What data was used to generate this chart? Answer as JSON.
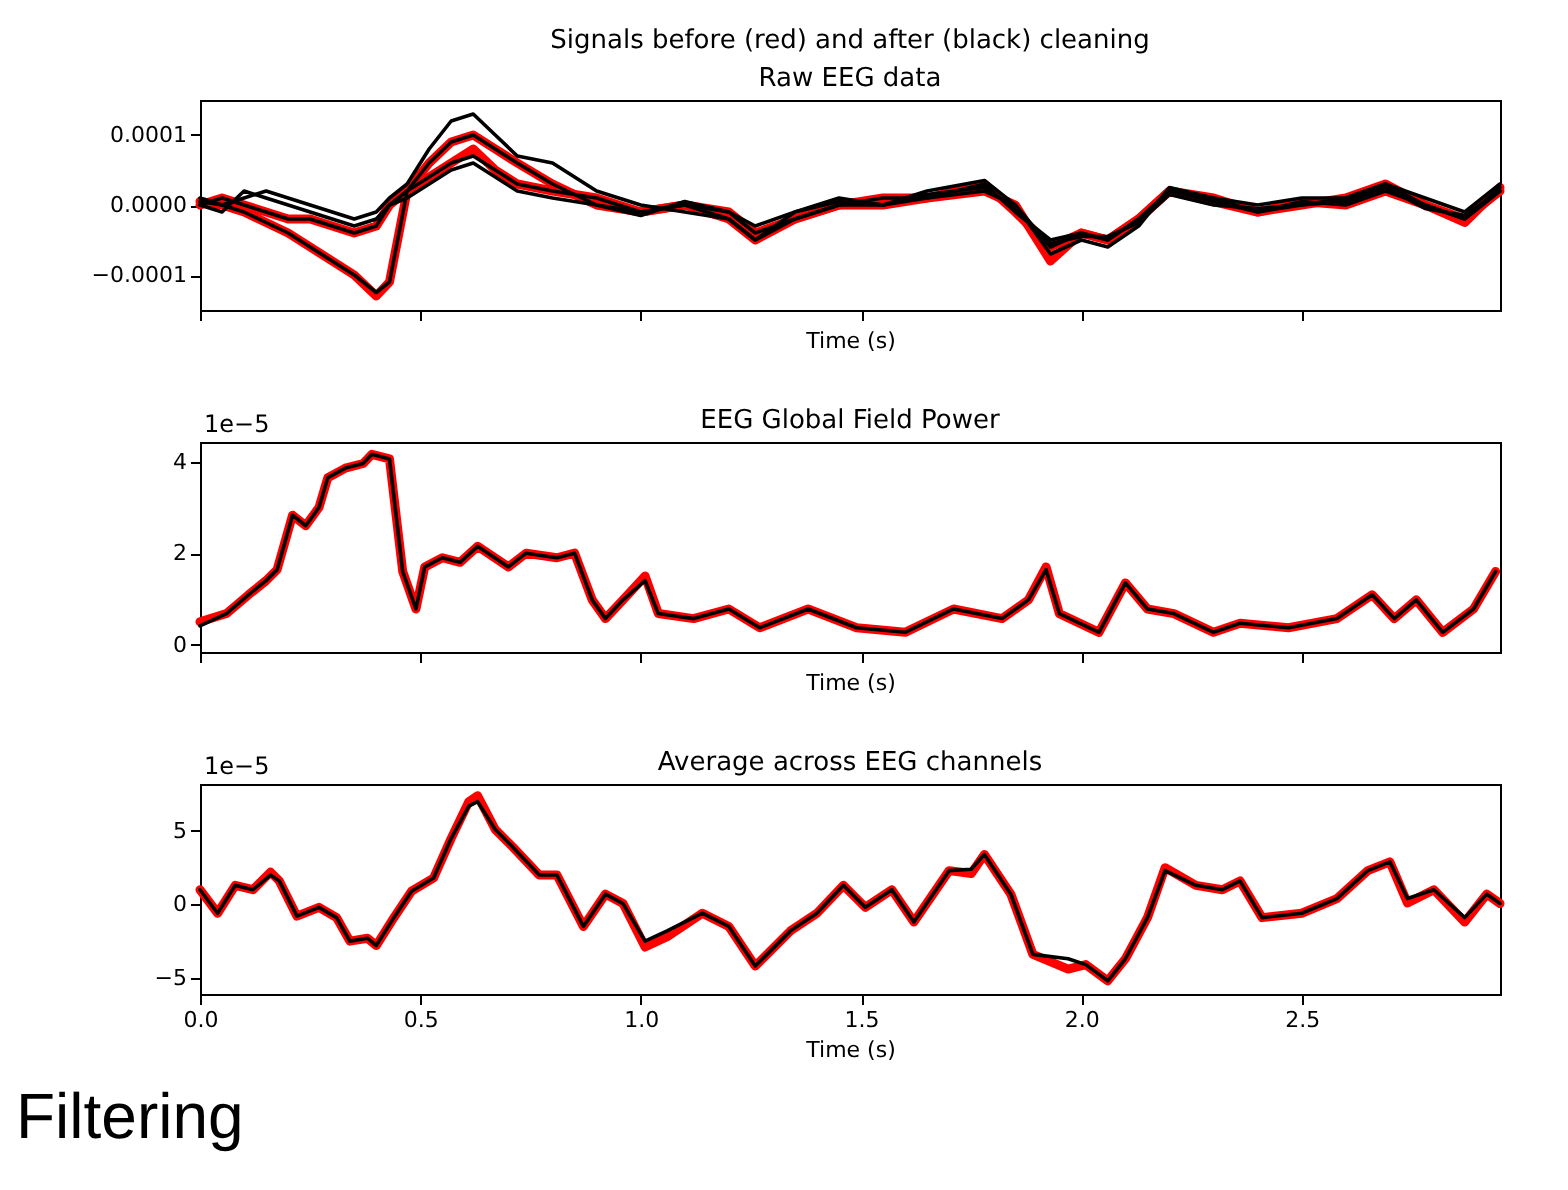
{
  "chart_data": [
    {
      "type": "line",
      "title": "Signals before (red) and after (black) cleaning",
      "subtitle": "Raw EEG data",
      "xlabel": "Time (s)",
      "xlim": [
        0,
        2.95
      ],
      "xticks": [
        0,
        0.5,
        1,
        1.5,
        2,
        2.5
      ],
      "ylim": [
        -0.00015,
        0.00015
      ],
      "yticks": [
        {
          "value": -0.0001,
          "label": "−0.0001"
        },
        {
          "value": 0,
          "label": "0.0000"
        },
        {
          "value": 0.0001,
          "label": "0.0001"
        }
      ],
      "tick_labels": "y",
      "x": [
        0,
        0.05,
        0.1,
        0.15,
        0.2,
        0.25,
        0.3,
        0.35,
        0.4,
        0.43,
        0.47,
        0.52,
        0.57,
        0.62,
        0.67,
        0.72,
        0.8,
        0.9,
        1.0,
        1.1,
        1.2,
        1.26,
        1.35,
        1.45,
        1.55,
        1.65,
        1.78,
        1.85,
        1.93,
        2.0,
        2.06,
        2.13,
        2.2,
        2.3,
        2.4,
        2.5,
        2.6,
        2.69,
        2.78,
        2.87,
        2.95
      ],
      "series": [
        {
          "color": "#ff0000",
          "values": [
            5e-06,
            0,
            -1e-05,
            -2.5e-05,
            -4e-05,
            -6e-05,
            -8e-05,
            -0.0001,
            -0.00013,
            -0.00011,
            2e-05,
            6e-05,
            9e-05,
            0.0001,
            8e-05,
            6e-05,
            3e-05,
            0,
            -1e-05,
            0,
            -2e-05,
            -5e-05,
            -2e-05,
            0,
            0,
            1e-05,
            2e-05,
            0,
            -8e-05,
            -4e-05,
            -5e-05,
            -2e-05,
            2e-05,
            1e-05,
            -1e-05,
            0,
            1e-05,
            3e-05,
            0,
            -2e-05,
            2e-05
          ]
        },
        {
          "color": "#ff0000",
          "values": [
            0,
            1e-05,
            0,
            -1e-05,
            -2e-05,
            -2e-05,
            -3e-05,
            -4e-05,
            -3e-05,
            0,
            2e-05,
            4e-05,
            6e-05,
            8e-05,
            5e-05,
            3e-05,
            2e-05,
            1e-05,
            -1e-05,
            0,
            -1e-05,
            -4e-05,
            -2e-05,
            0,
            1e-05,
            1e-05,
            3e-05,
            -1e-05,
            -6e-05,
            -4e-05,
            -5e-05,
            -2e-05,
            2e-05,
            5e-06,
            -1e-05,
            5e-06,
            0,
            2e-05,
            0,
            -2.5e-05,
            2.5e-05
          ]
        },
        {
          "color": "#000000",
          "values": [
            5e-06,
            0,
            -1e-05,
            -2.5e-05,
            -4e-05,
            -6e-05,
            -8e-05,
            -0.0001,
            -0.000125,
            -0.00011,
            2e-05,
            6e-05,
            9e-05,
            0.0001,
            8e-05,
            6e-05,
            3e-05,
            0,
            -1e-05,
            0,
            -2e-05,
            -5e-05,
            -2e-05,
            0,
            0,
            1e-05,
            2e-05,
            0,
            -6e-05,
            -4e-05,
            -5e-05,
            -2e-05,
            2e-05,
            1e-05,
            -1e-05,
            0,
            1e-05,
            3e-05,
            0,
            -2e-05,
            2e-05
          ]
        },
        {
          "color": "#000000",
          "values": [
            1e-05,
            0,
            1e-05,
            2e-05,
            1e-05,
            0,
            -1e-05,
            -2e-05,
            -1e-05,
            1e-05,
            3e-05,
            8e-05,
            0.00012,
            0.00013,
            0.0001,
            7e-05,
            6e-05,
            2e-05,
            0,
            -1e-05,
            -2e-05,
            -5e-05,
            -1e-05,
            1e-05,
            0,
            2e-05,
            3.5e-05,
            0,
            -7e-05,
            -5e-05,
            -6e-05,
            -3e-05,
            2.5e-05,
            1e-05,
            0,
            1e-05,
            1e-05,
            3e-05,
            1e-05,
            -1e-05,
            3e-05
          ]
        },
        {
          "color": "#000000",
          "values": [
            0,
            1e-05,
            0,
            -1e-05,
            -2e-05,
            -2e-05,
            -3e-05,
            -4e-05,
            -3e-05,
            0,
            2e-05,
            4e-05,
            6e-05,
            7e-05,
            5e-05,
            3e-05,
            2e-05,
            1e-05,
            -1e-05,
            0,
            -1e-05,
            -4e-05,
            -2e-05,
            0,
            1e-05,
            1e-05,
            3e-05,
            -1e-05,
            -5e-05,
            -4e-05,
            -5e-05,
            -2e-05,
            2e-05,
            5e-06,
            -1e-05,
            5e-06,
            0,
            2e-05,
            0,
            -2e-05,
            2.5e-05
          ]
        },
        {
          "color": "#000000",
          "values": [
            0,
            -1e-05,
            2e-05,
            1e-05,
            0,
            -1e-05,
            -2e-05,
            -3e-05,
            -2e-05,
            0,
            1e-05,
            3e-05,
            5e-05,
            6e-05,
            4e-05,
            2e-05,
            1e-05,
            0,
            -1.5e-05,
            5e-06,
            -1e-05,
            -3e-05,
            -1e-05,
            5e-06,
            0,
            1.5e-05,
            2.5e-05,
            -5e-06,
            -5.5e-05,
            -4.5e-05,
            -4.5e-05,
            -2.5e-05,
            1.5e-05,
            0,
            -5e-06,
            0,
            5e-06,
            2.5e-05,
            -5e-06,
            -1.5e-05,
            2e-05
          ]
        }
      ]
    },
    {
      "type": "line",
      "title": "EEG Global Field Power",
      "xlabel": "Time (s)",
      "xlim": [
        0,
        2.95
      ],
      "xticks": [
        0,
        0.5,
        1,
        1.5,
        2,
        2.5
      ],
      "ylim": [
        -0.16,
        4.43
      ],
      "yticks": [
        0,
        2,
        4
      ],
      "tick_labels": "y",
      "annotations": [
        "1e−5"
      ],
      "x": [
        0,
        0.06,
        0.11,
        0.15,
        0.175,
        0.21,
        0.24,
        0.27,
        0.29,
        0.33,
        0.37,
        0.39,
        0.43,
        0.44,
        0.46,
        0.49,
        0.51,
        0.55,
        0.59,
        0.63,
        0.7,
        0.74,
        0.81,
        0.85,
        0.89,
        0.92,
        0.96,
        1.01,
        1.04,
        1.12,
        1.2,
        1.27,
        1.38,
        1.49,
        1.6,
        1.71,
        1.82,
        1.88,
        1.92,
        1.95,
        2.04,
        2.1,
        2.15,
        2.21,
        2.3,
        2.36,
        2.47,
        2.58,
        2.66,
        2.71,
        2.76,
        2.82,
        2.89,
        2.94
      ],
      "series": [
        {
          "color": "#ff0000",
          "values": [
            0.5,
            0.68,
            1.09,
            1.4,
            1.64,
            2.83,
            2.6,
            3.0,
            3.65,
            3.86,
            3.96,
            4.16,
            4.06,
            3.24,
            1.6,
            0.78,
            1.7,
            1.9,
            1.8,
            2.15,
            1.7,
            2.0,
            1.9,
            2.0,
            0.98,
            0.57,
            0.98,
            1.5,
            0.68,
            0.57,
            0.78,
            0.37,
            0.78,
            0.37,
            0.27,
            0.78,
            0.57,
            0.98,
            1.7,
            0.68,
            0.27,
            1.35,
            0.78,
            0.68,
            0.27,
            0.47,
            0.37,
            0.57,
            1.09,
            0.57,
            0.98,
            0.27,
            0.78,
            1.6
          ]
        },
        {
          "color": "#000000",
          "values": [
            0.41,
            0.68,
            1.09,
            1.4,
            1.64,
            2.83,
            2.6,
            3.0,
            3.65,
            3.86,
            3.96,
            4.16,
            4.06,
            3.24,
            1.6,
            0.78,
            1.7,
            1.9,
            1.8,
            2.15,
            1.7,
            2.0,
            1.9,
            2.0,
            0.98,
            0.57,
            0.98,
            1.4,
            0.68,
            0.57,
            0.78,
            0.37,
            0.78,
            0.37,
            0.27,
            0.78,
            0.57,
            0.98,
            1.64,
            0.68,
            0.27,
            1.35,
            0.78,
            0.68,
            0.27,
            0.47,
            0.37,
            0.57,
            1.09,
            0.57,
            0.98,
            0.27,
            0.78,
            1.6
          ]
        }
      ]
    },
    {
      "type": "line",
      "title": "Average across EEG channels",
      "xlabel": "Time (s)",
      "xlim": [
        0,
        2.95
      ],
      "xticks": [
        {
          "value": 0,
          "label": "0.0"
        },
        {
          "value": 0.5,
          "label": "0.5"
        },
        {
          "value": 1,
          "label": "1.0"
        },
        {
          "value": 1.5,
          "label": "1.5"
        },
        {
          "value": 2,
          "label": "2.0"
        },
        {
          "value": 2.5,
          "label": "2.5"
        }
      ],
      "ylim": [
        -6.1,
        8.2
      ],
      "yticks": [
        {
          "value": -5,
          "label": "−5"
        },
        0,
        5
      ],
      "annotations": [
        "1e−5",
        "Filtering"
      ],
      "x": [
        0,
        0.04,
        0.08,
        0.12,
        0.16,
        0.18,
        0.22,
        0.27,
        0.31,
        0.34,
        0.38,
        0.4,
        0.44,
        0.48,
        0.53,
        0.57,
        0.61,
        0.63,
        0.67,
        0.71,
        0.77,
        0.81,
        0.87,
        0.92,
        0.96,
        1.01,
        1.06,
        1.14,
        1.2,
        1.26,
        1.34,
        1.4,
        1.46,
        1.51,
        1.57,
        1.62,
        1.7,
        1.75,
        1.78,
        1.84,
        1.89,
        1.97,
        2.01,
        2.06,
        2.1,
        2.15,
        2.19,
        2.26,
        2.32,
        2.36,
        2.41,
        2.5,
        2.58,
        2.65,
        2.7,
        2.74,
        2.8,
        2.87,
        2.92,
        2.95
      ],
      "series": [
        {
          "color": "#ff0000",
          "values": [
            1.0,
            -0.6,
            1.3,
            1.0,
            2.2,
            1.6,
            -0.8,
            -0.2,
            -0.9,
            -2.5,
            -2.3,
            -2.8,
            -0.9,
            0.9,
            1.8,
            4.5,
            7.0,
            7.4,
            5.1,
            3.9,
            2.0,
            2.0,
            -1.5,
            0.7,
            0.06,
            -2.9,
            -2.2,
            -0.6,
            -1.5,
            -4.2,
            -1.8,
            -0.6,
            1.3,
            -0.2,
            1.0,
            -1.2,
            2.3,
            2.1,
            3.4,
            0.7,
            -3.4,
            -4.4,
            -4.1,
            -5.2,
            -3.7,
            -0.9,
            2.5,
            1.3,
            1.0,
            1.6,
            -0.9,
            -0.6,
            0.4,
            2.3,
            2.9,
            0.1,
            1.0,
            -1.2,
            0.7,
            0.06
          ]
        },
        {
          "color": "#000000",
          "values": [
            1.0,
            -0.6,
            1.3,
            1.0,
            2.0,
            1.6,
            -0.8,
            -0.2,
            -0.9,
            -2.5,
            -2.3,
            -2.8,
            -0.9,
            0.9,
            1.8,
            4.5,
            6.7,
            7.0,
            5.1,
            3.9,
            2.0,
            2.0,
            -1.5,
            0.7,
            0.06,
            -2.5,
            -1.8,
            -0.6,
            -1.5,
            -4.2,
            -1.8,
            -0.6,
            1.3,
            -0.2,
            1.0,
            -1.2,
            2.3,
            2.4,
            3.4,
            0.7,
            -3.4,
            -3.7,
            -4.1,
            -5.2,
            -3.7,
            -0.9,
            2.3,
            1.3,
            1.0,
            1.6,
            -0.9,
            -0.6,
            0.4,
            2.3,
            2.9,
            0.4,
            1.0,
            -0.9,
            0.7,
            0.06
          ]
        }
      ]
    }
  ]
}
